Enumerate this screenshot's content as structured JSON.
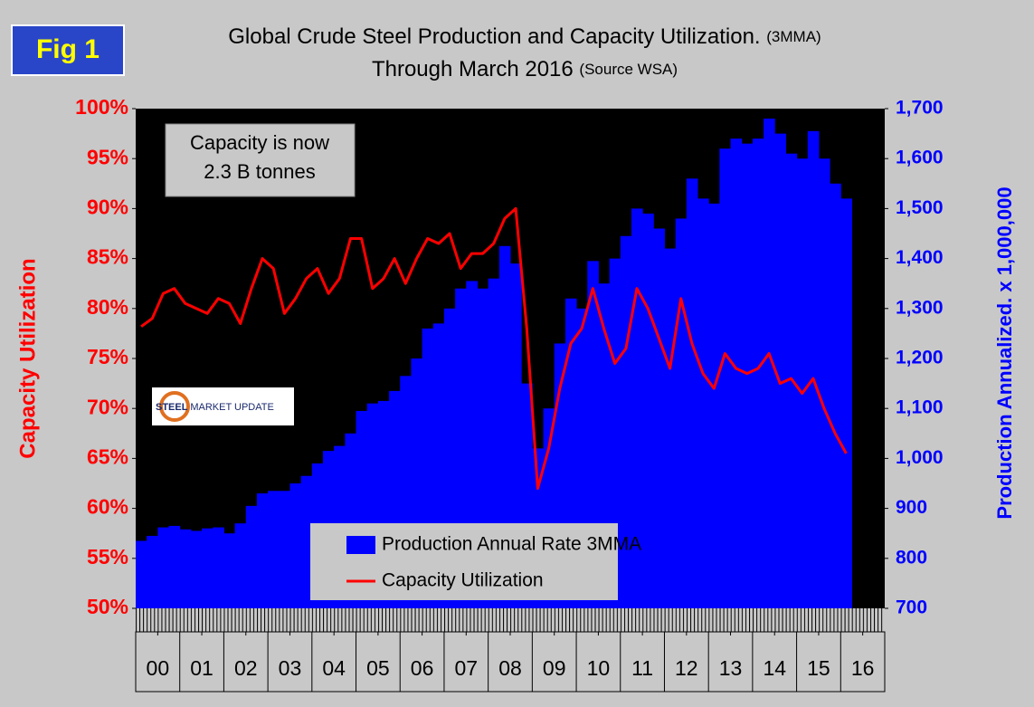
{
  "chart_data": {
    "type": "bar-line",
    "figure_label": "Fig 1",
    "title": "Global Crude Steel Production and Capacity Utilization.",
    "title_note": "(3MMA)",
    "subtitle": "Through March 2016",
    "subtitle_note": "(Source WSA)",
    "annotations": [
      "Capacity is now",
      "2.3 B tonnes"
    ],
    "logo": [
      "STEEL",
      "MARKET UPDATE"
    ],
    "y_label": "Capacity Utilization",
    "y2_label": "Production Annualized. x 1,000,000",
    "xlim": [
      2000,
      2017
    ],
    "xticks": [
      {
        "value": 2000.5,
        "label": "00"
      },
      {
        "value": 2001.5,
        "label": "01"
      },
      {
        "value": 2002.5,
        "label": "02"
      },
      {
        "value": 2003.5,
        "label": "03"
      },
      {
        "value": 2004.5,
        "label": "04"
      },
      {
        "value": 2005.5,
        "label": "05"
      },
      {
        "value": 2006.5,
        "label": "06"
      },
      {
        "value": 2007.5,
        "label": "07"
      },
      {
        "value": 2008.5,
        "label": "08"
      },
      {
        "value": 2009.5,
        "label": "09"
      },
      {
        "value": 2010.5,
        "label": "10"
      },
      {
        "value": 2011.5,
        "label": "11"
      },
      {
        "value": 2012.5,
        "label": "12"
      },
      {
        "value": 2013.5,
        "label": "13"
      },
      {
        "value": 2014.5,
        "label": "14"
      },
      {
        "value": 2015.5,
        "label": "15"
      },
      {
        "value": 2016.5,
        "label": "16"
      }
    ],
    "ylim": [
      50,
      100
    ],
    "yticks": [
      {
        "value": 50,
        "label": "50%"
      },
      {
        "value": 55,
        "label": "55%"
      },
      {
        "value": 60,
        "label": "60%"
      },
      {
        "value": 65,
        "label": "65%"
      },
      {
        "value": 70,
        "label": "70%"
      },
      {
        "value": 75,
        "label": "75%"
      },
      {
        "value": 80,
        "label": "80%"
      },
      {
        "value": 85,
        "label": "85%"
      },
      {
        "value": 90,
        "label": "90%"
      },
      {
        "value": 95,
        "label": "95%"
      },
      {
        "value": 100,
        "label": "100%"
      }
    ],
    "y2lim": [
      700,
      1700
    ],
    "y2ticks": [
      700,
      800,
      900,
      {
        "value": 1000,
        "label": "1,000"
      },
      {
        "value": 1100,
        "label": "1,100"
      },
      {
        "value": 1200,
        "label": "1,200"
      },
      {
        "value": 1300,
        "label": "1,300"
      },
      {
        "value": 1400,
        "label": "1,400"
      },
      {
        "value": 1500,
        "label": "1,500"
      },
      {
        "value": 1600,
        "label": "1,600"
      },
      {
        "value": 1700,
        "label": "1,700"
      }
    ],
    "bar_width": 0.25,
    "x": [
      2000.125,
      2000.375,
      2000.625,
      2000.875,
      2001.125,
      2001.375,
      2001.625,
      2001.875,
      2002.125,
      2002.375,
      2002.625,
      2002.875,
      2003.125,
      2003.375,
      2003.625,
      2003.875,
      2004.125,
      2004.375,
      2004.625,
      2004.875,
      2005.125,
      2005.375,
      2005.625,
      2005.875,
      2006.125,
      2006.375,
      2006.625,
      2006.875,
      2007.125,
      2007.375,
      2007.625,
      2007.875,
      2008.125,
      2008.375,
      2008.625,
      2008.875,
      2009.125,
      2009.375,
      2009.625,
      2009.875,
      2010.125,
      2010.375,
      2010.625,
      2010.875,
      2011.125,
      2011.375,
      2011.625,
      2011.875,
      2012.125,
      2012.375,
      2012.625,
      2012.875,
      2013.125,
      2013.375,
      2013.625,
      2013.875,
      2014.125,
      2014.375,
      2014.625,
      2014.875,
      2015.125,
      2015.375,
      2015.625,
      2015.875,
      2016.125
    ],
    "series": [
      {
        "name": "Production Annual Rate 3MMA",
        "color": "#0000ff",
        "axis": "y2",
        "kind": "bar",
        "values": [
          835,
          845,
          862,
          865,
          858,
          855,
          860,
          862,
          850,
          870,
          905,
          930,
          935,
          935,
          950,
          965,
          990,
          1015,
          1025,
          1050,
          1095,
          1110,
          1115,
          1135,
          1165,
          1200,
          1260,
          1270,
          1300,
          1340,
          1355,
          1340,
          1360,
          1425,
          1390,
          1150,
          1020,
          1100,
          1230,
          1320,
          1300,
          1395,
          1350,
          1400,
          1445,
          1500,
          1490,
          1460,
          1420,
          1480,
          1560,
          1520,
          1510,
          1620,
          1640,
          1630,
          1640,
          1680,
          1650,
          1610,
          1600,
          1655,
          1600,
          1550,
          1520
        ]
      },
      {
        "name": "Capacity Utilization",
        "color": "#ff0000",
        "axis": "y",
        "kind": "line",
        "values": [
          78.2,
          79,
          81.5,
          82,
          80.5,
          80,
          79.5,
          81,
          80.5,
          78.5,
          82,
          85,
          84,
          79.5,
          81,
          83,
          84,
          81.5,
          83,
          87,
          87,
          82,
          83,
          85,
          82.5,
          85,
          87,
          86.5,
          87.5,
          84,
          85.5,
          85.5,
          86.5,
          89,
          90,
          78,
          62,
          66,
          72,
          76.5,
          78,
          82,
          78,
          74.5,
          76,
          82,
          80,
          77,
          74,
          81,
          76.5,
          73.5,
          72,
          75.5,
          74,
          73.5,
          74,
          75.5,
          72.5,
          73,
          71.5,
          73,
          70,
          67.5,
          65.5
        ]
      }
    ]
  }
}
